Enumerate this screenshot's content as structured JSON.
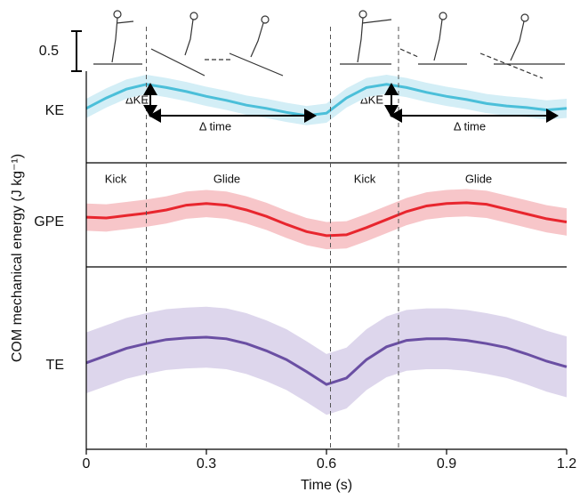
{
  "chart_data": [
    {
      "type": "line",
      "panel_label": "KE",
      "ylabel": "COM mechanical energy (J kg⁻¹)",
      "scale_bar": 0.5,
      "scale_bar_label": "0.5",
      "events": [
        0.15,
        0.61,
        0.78
      ],
      "annotations": [
        "ΔKE",
        "Δ time",
        "ΔKE",
        "Δ time"
      ],
      "xlim": [
        0,
        1.2
      ],
      "ylim": [
        0,
        1.15
      ],
      "x": [
        0,
        0.05,
        0.1,
        0.15,
        0.2,
        0.25,
        0.3,
        0.35,
        0.4,
        0.45,
        0.5,
        0.55,
        0.6,
        0.65,
        0.7,
        0.75,
        0.8,
        0.85,
        0.9,
        0.95,
        1.0,
        1.05,
        1.1,
        1.15,
        1.2
      ],
      "series": [
        {
          "color": "#4bbfd9",
          "band_color": "#d3eef6",
          "sd": 0.12,
          "values": [
            0.68,
            0.81,
            0.92,
            0.98,
            0.94,
            0.89,
            0.83,
            0.78,
            0.72,
            0.68,
            0.63,
            0.59,
            0.62,
            0.81,
            0.94,
            0.98,
            0.94,
            0.88,
            0.83,
            0.79,
            0.74,
            0.71,
            0.69,
            0.66,
            0.68
          ]
        }
      ]
    },
    {
      "type": "line",
      "panel_label": "GPE",
      "phases": [
        "Kick",
        "Glide",
        "Kick",
        "Glide"
      ],
      "xlim": [
        0,
        1.2
      ],
      "ylim": [
        0,
        1.22
      ],
      "x": [
        0,
        0.05,
        0.1,
        0.15,
        0.2,
        0.25,
        0.3,
        0.35,
        0.4,
        0.45,
        0.5,
        0.55,
        0.6,
        0.65,
        0.7,
        0.75,
        0.8,
        0.85,
        0.9,
        0.95,
        1.0,
        1.05,
        1.1,
        1.15,
        1.2
      ],
      "series": [
        {
          "color": "#e8262e",
          "band_color": "#f7c6c9",
          "sd": 0.17,
          "values": [
            0.62,
            0.61,
            0.64,
            0.67,
            0.71,
            0.77,
            0.79,
            0.77,
            0.71,
            0.63,
            0.53,
            0.44,
            0.39,
            0.4,
            0.49,
            0.59,
            0.69,
            0.76,
            0.79,
            0.8,
            0.78,
            0.72,
            0.66,
            0.6,
            0.56
          ]
        }
      ]
    },
    {
      "type": "line",
      "panel_label": "TE",
      "xlabel": "Time (s)",
      "xlim": [
        0,
        1.2
      ],
      "ylim": [
        0,
        2.2
      ],
      "xticks": [
        0,
        0.3,
        0.6,
        0.9,
        1.2
      ],
      "x": [
        0,
        0.05,
        0.1,
        0.15,
        0.2,
        0.25,
        0.3,
        0.35,
        0.4,
        0.45,
        0.5,
        0.55,
        0.6,
        0.65,
        0.7,
        0.75,
        0.8,
        0.85,
        0.9,
        0.95,
        1.0,
        1.05,
        1.1,
        1.15,
        1.2
      ],
      "series": [
        {
          "color": "#6a4fa3",
          "band_color": "#ddd6ec",
          "sd": 0.38,
          "values": [
            1.08,
            1.17,
            1.26,
            1.32,
            1.37,
            1.39,
            1.4,
            1.38,
            1.32,
            1.23,
            1.12,
            0.97,
            0.81,
            0.89,
            1.12,
            1.28,
            1.36,
            1.38,
            1.38,
            1.36,
            1.32,
            1.27,
            1.19,
            1.1,
            1.03
          ]
        }
      ]
    }
  ]
}
